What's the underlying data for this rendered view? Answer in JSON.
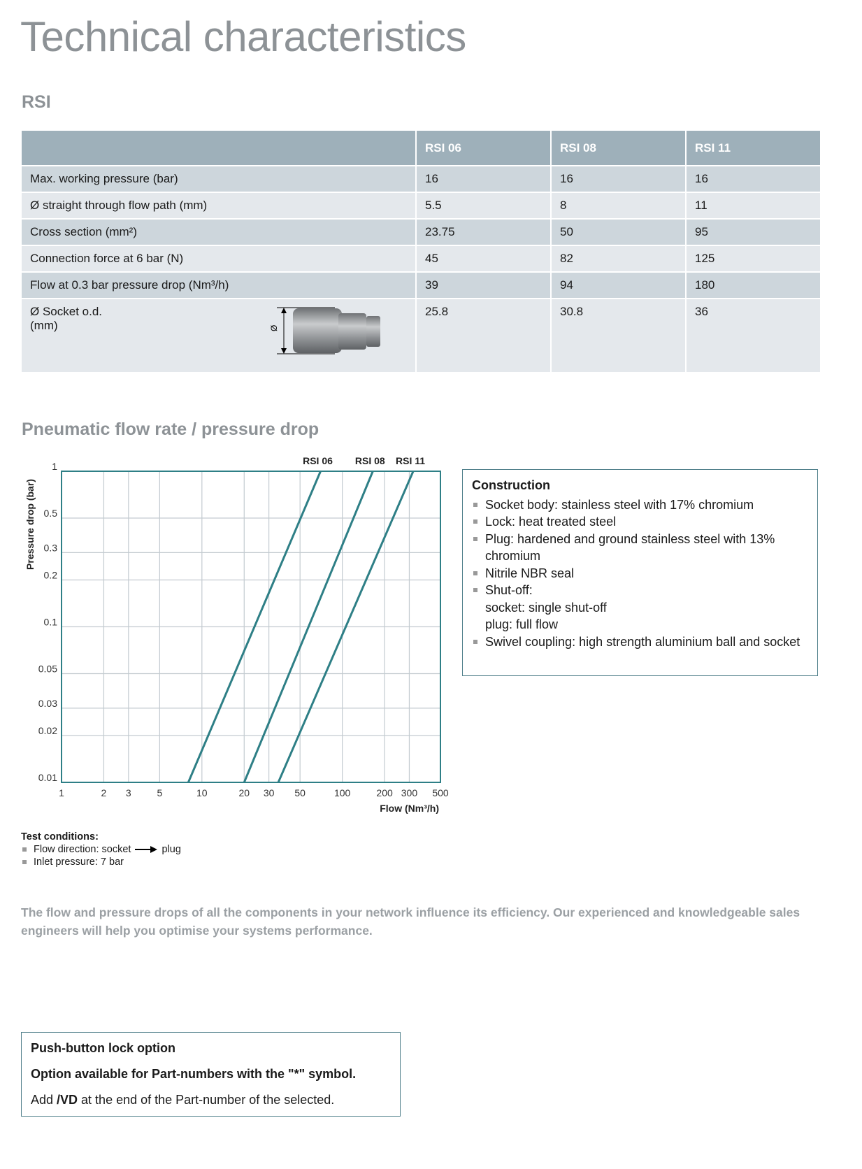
{
  "title": "Technical characteristics",
  "subtitle": "RSI",
  "table": {
    "headers": [
      "",
      "RSI 06",
      "RSI 08",
      "RSI 11"
    ],
    "rows": [
      [
        "Max. working pressure (bar)",
        "16",
        "16",
        "16"
      ],
      [
        "Ø straight through flow path (mm)",
        "5.5",
        "8",
        "11"
      ],
      [
        "Cross section (mm²)",
        "23.75",
        "50",
        "95"
      ],
      [
        "Connection force at 6 bar (N)",
        "45",
        "82",
        "125"
      ],
      [
        "Flow at 0.3 bar pressure drop (Nm³/h)",
        "39",
        "94",
        "180"
      ]
    ],
    "socket_row": {
      "label_line1": "Ø Socket o.d.",
      "label_line2": "(mm)",
      "diameter_symbol": "Ø",
      "values": [
        "25.8",
        "30.8",
        "36"
      ]
    }
  },
  "chart_title": "Pneumatic flow rate / pressure drop",
  "chart_data": {
    "type": "line",
    "xlabel": "Flow (Nm³/h)",
    "ylabel": "Pressure drop (bar)",
    "xscale": "log",
    "yscale": "log",
    "xlim": [
      1,
      500
    ],
    "ylim": [
      0.01,
      1
    ],
    "xticks": [
      "1",
      "2",
      "3",
      "5",
      "10",
      "20",
      "30",
      "50",
      "100",
      "200",
      "300",
      "500"
    ],
    "yticks": [
      "0.01",
      "0.02",
      "0.03",
      "0.05",
      "0.1",
      "0.2",
      "0.3",
      "0.5",
      "1"
    ],
    "grid": true,
    "line_color": "#2e7f86",
    "series": [
      {
        "name": "RSI 06",
        "points": [
          [
            8,
            0.01
          ],
          [
            70,
            1
          ]
        ]
      },
      {
        "name": "RSI 08",
        "points": [
          [
            20,
            0.01
          ],
          [
            165,
            1
          ]
        ]
      },
      {
        "name": "RSI 11",
        "points": [
          [
            35,
            0.01
          ],
          [
            320,
            1
          ]
        ]
      }
    ]
  },
  "construction": {
    "title": "Construction",
    "items": [
      {
        "text": "Socket body: stainless steel with 17% chromium",
        "bullet": true
      },
      {
        "text": "Lock: heat treated steel",
        "bullet": true
      },
      {
        "text": "Plug: hardened and ground stainless steel with 13% chromium",
        "bullet": true
      },
      {
        "text": "Nitrile NBR seal",
        "bullet": true
      },
      {
        "text": "Shut-off:",
        "bullet": true
      },
      {
        "text": "socket: single shut-off",
        "bullet": false
      },
      {
        "text": "plug: full flow",
        "bullet": false
      },
      {
        "text": "Swivel coupling: high strength aluminium ball and socket",
        "bullet": true
      }
    ]
  },
  "test_conditions": {
    "title": "Test conditions:",
    "flow_prefix": "Flow direction: socket",
    "flow_suffix": "plug",
    "inlet": "Inlet pressure: 7 bar"
  },
  "note": "The flow and pressure drops of all the components in your network influence its efficiency. Our experienced and knowledgeable sales engineers will help you optimise your systems performance.",
  "push_button": {
    "title": "Push-button lock option",
    "availability": "Option available for Part-numbers with the \"*\" symbol.",
    "add_prefix": "Add ",
    "add_code": "/VD",
    "add_suffix": " at the end of the Part-number of the selected."
  }
}
